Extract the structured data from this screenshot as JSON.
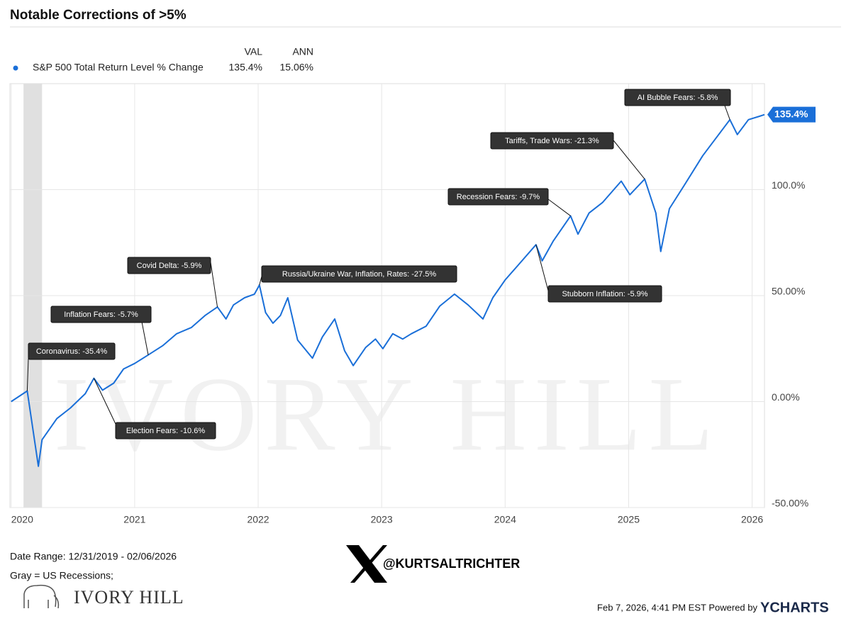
{
  "chart_data": {
    "type": "line",
    "title": "Notable Corrections of >5%",
    "legend": {
      "headers": [
        "VAL",
        "ANN"
      ],
      "val": "135.4%",
      "ann": "15.06%"
    },
    "x": [
      2020.0,
      2020.13,
      2020.22,
      2020.25,
      2020.37,
      2020.48,
      2020.6,
      2020.67,
      2020.74,
      2020.83,
      2020.91,
      2021.0,
      2021.11,
      2021.23,
      2021.34,
      2021.46,
      2021.57,
      2021.67,
      2021.74,
      2021.8,
      2021.89,
      2021.97,
      2022.01,
      2022.06,
      2022.12,
      2022.18,
      2022.24,
      2022.32,
      2022.44,
      2022.52,
      2022.62,
      2022.7,
      2022.77,
      2022.87,
      2022.95,
      2023.01,
      2023.09,
      2023.17,
      2023.24,
      2023.36,
      2023.47,
      2023.59,
      2023.7,
      2023.82,
      2023.9,
      2024.0,
      2024.1,
      2024.25,
      2024.3,
      2024.39,
      2024.53,
      2024.59,
      2024.68,
      2024.79,
      2024.94,
      2025.01,
      2025.13,
      2025.22,
      2025.26,
      2025.33,
      2025.45,
      2025.6,
      2025.71,
      2025.82,
      2025.88,
      2025.97,
      2026.06,
      2026.1
    ],
    "series": [
      {
        "name": "S&P 500 Total Return Level % Change",
        "color": "#1a6fd8",
        "values": [
          0,
          5,
          -30.5,
          -18,
          -8,
          -3,
          3.7,
          11,
          5.4,
          8.7,
          15.4,
          18,
          22,
          26.5,
          32,
          35,
          40.6,
          44.6,
          39,
          45.6,
          49,
          50.7,
          55,
          42,
          37,
          40.6,
          49,
          29,
          20.5,
          30.5,
          39,
          24,
          17,
          25.5,
          29.5,
          25,
          32,
          29.5,
          32,
          35.6,
          45,
          50.7,
          45.6,
          39,
          49,
          57.4,
          64,
          74,
          66.4,
          75.8,
          87.6,
          79,
          89,
          94,
          104,
          97.6,
          105,
          89,
          70.8,
          91,
          102,
          116,
          124.5,
          133,
          126,
          133,
          134.6,
          135.4
        ]
      }
    ],
    "last_value_label": "135.4%",
    "xlim": [
      2019.99,
      2026.1
    ],
    "xticks": [
      2020,
      2021,
      2022,
      2023,
      2024,
      2025,
      2026
    ],
    "ylim": [
      -50,
      150
    ],
    "yticks": [
      {
        "value": -50,
        "label": "-50.00%"
      },
      {
        "value": 0,
        "label": "0.00%"
      },
      {
        "value": 50,
        "label": "50.00%"
      },
      {
        "value": 100,
        "label": "100.0%"
      }
    ],
    "grid": true,
    "shaded_periods": [
      [
        2020.1,
        2020.25
      ]
    ],
    "annotations": [
      {
        "text": "Coronavirus: -35.4%",
        "x": 2020.13
      },
      {
        "text": "Inflation Fears: -5.7%",
        "x": 2021.11
      },
      {
        "text": "Election Fears: -10.6%",
        "x": 2020.67
      },
      {
        "text": "Covid Delta: -5.9%",
        "x": 2021.67
      },
      {
        "text": "Russia/Ukraine War, Inflation, Rates: -27.5%",
        "x": 2022.01
      },
      {
        "text": "Stubborn Inflation: -5.9%",
        "x": 2024.25
      },
      {
        "text": "Recession Fears: -9.7%",
        "x": 2024.53
      },
      {
        "text": "Tariffs, Trade Wars: -21.3%",
        "x": 2025.13
      },
      {
        "text": "AI Bubble Fears: -5.8%",
        "x": 2025.82
      }
    ],
    "watermark": "IVORY HILL"
  },
  "footer": {
    "date_range": "Date Range: 12/31/2019 - 02/06/2026",
    "note": "Gray = US Recessions;",
    "handle": "@KURTSALTRICHTER",
    "logo": "IVORY HILL",
    "timestamp": "Feb 7, 2026, 4:41 PM EST Powered by",
    "brand": "YCHARTS"
  }
}
